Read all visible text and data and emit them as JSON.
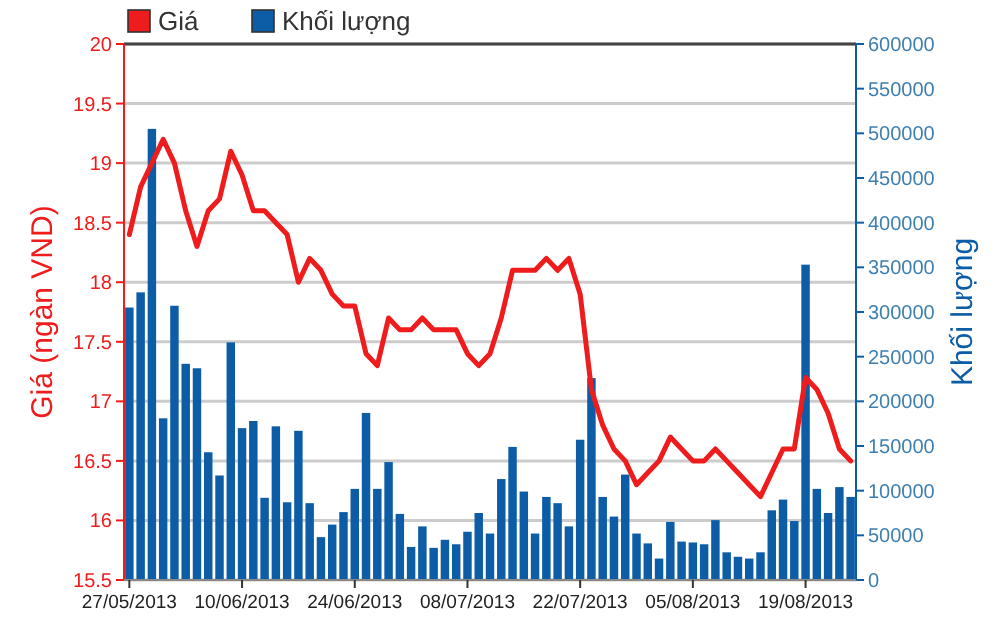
{
  "chart_data": {
    "type": "bar",
    "categories": [
      "27/05/2013",
      null,
      null,
      null,
      null,
      null,
      null,
      null,
      null,
      null,
      "10/06/2013",
      null,
      null,
      null,
      null,
      null,
      null,
      null,
      null,
      null,
      "24/06/2013",
      null,
      null,
      null,
      null,
      null,
      null,
      null,
      null,
      null,
      "08/07/2013",
      null,
      null,
      null,
      null,
      null,
      null,
      null,
      null,
      null,
      "22/07/2013",
      null,
      null,
      null,
      null,
      null,
      null,
      null,
      null,
      null,
      "05/08/2013",
      null,
      null,
      null,
      null,
      null,
      null,
      null,
      null,
      null,
      "19/08/2013",
      null,
      null,
      null,
      null
    ],
    "series": [
      {
        "name": "Giá",
        "type": "line",
        "axis": "y",
        "color": "#ee1c1c",
        "values": [
          18.4,
          18.8,
          19.0,
          19.2,
          19.0,
          18.6,
          18.3,
          18.6,
          18.7,
          19.1,
          18.9,
          18.6,
          18.6,
          18.5,
          18.4,
          18.0,
          18.2,
          18.1,
          17.9,
          17.8,
          17.8,
          17.4,
          17.3,
          17.7,
          17.6,
          17.6,
          17.7,
          17.6,
          17.6,
          17.6,
          17.4,
          17.3,
          17.4,
          17.7,
          18.1,
          18.1,
          18.1,
          18.2,
          18.1,
          18.2,
          17.9,
          17.1,
          16.8,
          16.6,
          16.5,
          16.3,
          16.4,
          16.5,
          16.7,
          16.6,
          16.5,
          16.5,
          16.6,
          16.5,
          16.4,
          16.3,
          16.2,
          16.4,
          16.6,
          16.6,
          17.2,
          17.1,
          16.9,
          16.6,
          16.5
        ]
      },
      {
        "name": "Khối lượng",
        "axis": "y2",
        "color": "#0c5da5",
        "values": [
          305000,
          322000,
          505000,
          181000,
          307000,
          242000,
          237000,
          143000,
          117000,
          266000,
          170000,
          178000,
          92000,
          172000,
          87000,
          167000,
          86000,
          48000,
          62000,
          76000,
          102000,
          187000,
          102000,
          132000,
          74000,
          37000,
          60000,
          36000,
          45000,
          40000,
          54000,
          75000,
          52000,
          113000,
          149000,
          99000,
          52000,
          93000,
          86000,
          60000,
          157000,
          226000,
          93000,
          71000,
          118000,
          52000,
          41000,
          24000,
          65000,
          43000,
          42000,
          40000,
          67000,
          31000,
          26000,
          24000,
          31000,
          78000,
          90000,
          66000,
          353000,
          102000,
          75000,
          104000,
          93000
        ]
      }
    ],
    "ylabel": "Giá (ngàn VND)",
    "y2label": "Khối lượng",
    "ylim": [
      15.5,
      20
    ],
    "yticks": [
      15.5,
      16,
      16.5,
      17,
      17.5,
      18,
      18.5,
      19,
      19.5,
      20
    ],
    "y2lim": [
      0,
      600000
    ],
    "y2ticks": [
      0,
      50000,
      100000,
      150000,
      200000,
      250000,
      300000,
      350000,
      400000,
      450000,
      500000,
      550000,
      600000
    ],
    "grid": "y",
    "legend": "top left",
    "marker": "none",
    "line_style": "solid"
  }
}
